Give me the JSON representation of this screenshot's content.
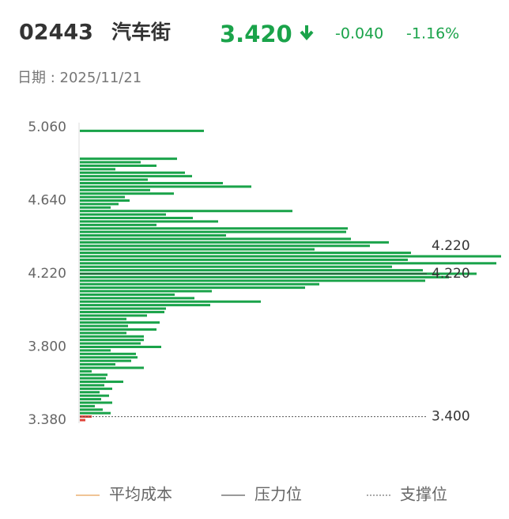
{
  "header": {
    "code": "02443",
    "name": "汽车街",
    "price": {
      "value": 3.42,
      "label": "3.420"
    },
    "change": {
      "value": -0.04,
      "label": "-0.040"
    },
    "change_pct": {
      "value": -1.16,
      "label": "-1.16%"
    },
    "date": "日期 : 2025/11/21"
  },
  "chart_data": {
    "type": "chip-distribution",
    "color": "#1aa34a",
    "down_color": "#e0443a",
    "y": [
      5.04,
      4.88,
      4.86,
      4.84,
      4.82,
      4.8,
      4.78,
      4.76,
      4.74,
      4.72,
      4.7,
      4.68,
      4.66,
      4.64,
      4.62,
      4.6,
      4.58,
      4.56,
      4.54,
      4.52,
      4.5,
      4.48,
      4.46,
      4.44,
      4.42,
      4.4,
      4.38,
      4.36,
      4.34,
      4.32,
      4.3,
      4.28,
      4.26,
      4.24,
      4.22,
      4.2,
      4.18,
      4.16,
      4.14,
      4.12,
      4.1,
      4.08,
      4.06,
      4.04,
      4.02,
      4.0,
      3.98,
      3.96,
      3.94,
      3.92,
      3.9,
      3.88,
      3.86,
      3.84,
      3.82,
      3.8,
      3.78,
      3.76,
      3.74,
      3.72,
      3.7,
      3.68,
      3.66,
      3.64,
      3.62,
      3.6,
      3.58,
      3.56,
      3.54,
      3.52,
      3.5,
      3.48,
      3.46,
      3.44,
      3.42,
      3.4,
      3.38
    ],
    "values": [
      157,
      123,
      77,
      97,
      45,
      133,
      142,
      86,
      181,
      217,
      89,
      119,
      57,
      63,
      49,
      39,
      269,
      109,
      143,
      175,
      97,
      339,
      337,
      185,
      343,
      391,
      367,
      297,
      419,
      533,
      415,
      527,
      395,
      434,
      502,
      467,
      437,
      303,
      285,
      167,
      120,
      145,
      229,
      165,
      109,
      107,
      85,
      59,
      101,
      61,
      97,
      59,
      81,
      81,
      77,
      103,
      39,
      71,
      73,
      65,
      45,
      81,
      15,
      35,
      33,
      55,
      31,
      41,
      25,
      37,
      27,
      41,
      19,
      29,
      39,
      15,
      7
    ],
    "xlim": [
      0,
      535
    ],
    "ylim": [
      3.36,
      5.08
    ],
    "yticks": [
      {
        "value": 5.06,
        "label": "5.060"
      },
      {
        "value": 4.64,
        "label": "4.640"
      },
      {
        "value": 4.22,
        "label": "4.220"
      },
      {
        "value": 3.8,
        "label": "3.800"
      },
      {
        "value": 3.38,
        "label": "3.380"
      }
    ],
    "lines": [
      {
        "name": "平均成本",
        "value": 4.22,
        "label": "4.220",
        "color": "#e08a2e",
        "style": "solid"
      },
      {
        "name": "压力位",
        "value": 4.22,
        "label": "4.220",
        "color": "#333333",
        "style": "solid"
      },
      {
        "name": "支撑位",
        "value": 3.4,
        "label": "3.400",
        "color": "#555555",
        "style": "dotted"
      }
    ]
  }
}
